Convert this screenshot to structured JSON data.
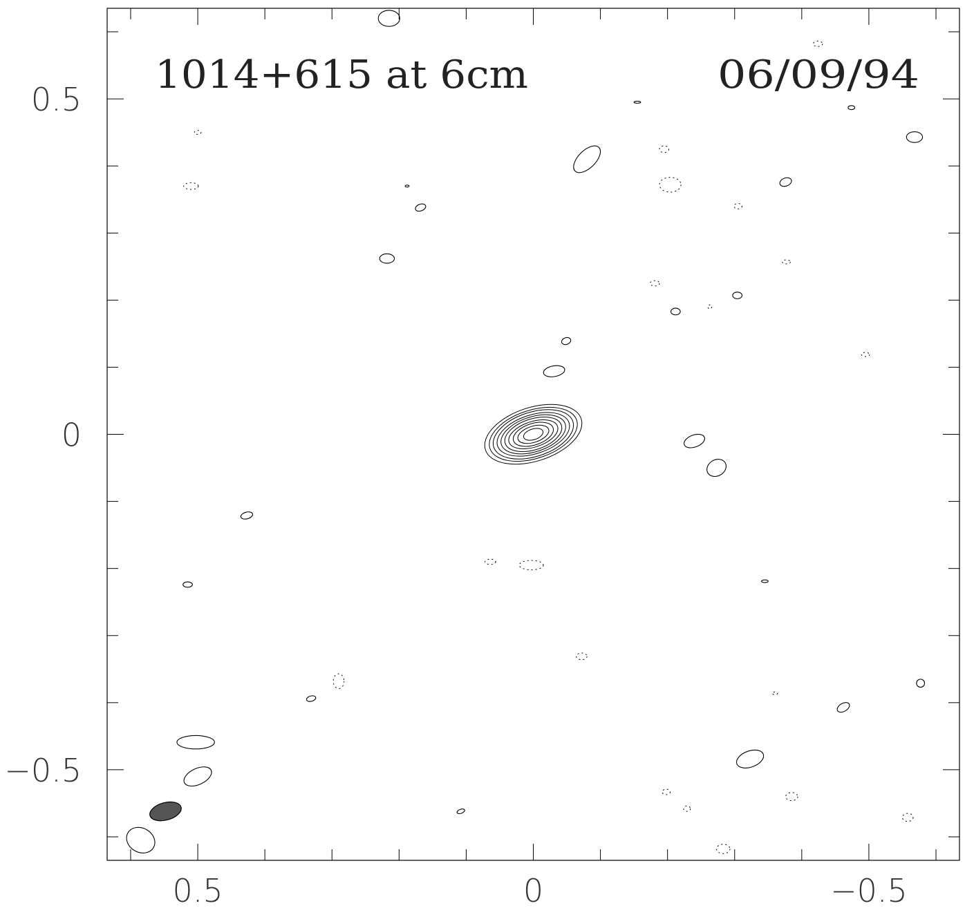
{
  "chart_data": {
    "type": "contour",
    "title_left": "1014+615 at 6cm",
    "title_right": "06/09/94",
    "xlabel": "",
    "ylabel": "",
    "xlim": [
      0.635,
      -0.635
    ],
    "ylim": [
      -0.635,
      0.635
    ],
    "x_ticks_major": [
      0.5,
      0,
      -0.5
    ],
    "x_tick_labels": [
      "0.5",
      "0",
      "−0.5"
    ],
    "y_ticks_major": [
      0.5,
      0,
      -0.5
    ],
    "y_tick_labels": [
      "0.5",
      "0",
      "−0.5"
    ],
    "minor_tick_step": 0.1,
    "grid": false,
    "beam": {
      "x": 0.548,
      "y": -0.562,
      "a": 0.024,
      "b": 0.013,
      "angle_deg": -15,
      "fill": "#555555"
    },
    "core": {
      "x": 0.0,
      "y": 0.0,
      "angle_deg": -18,
      "levels": [
        {
          "a": 0.075,
          "b": 0.04
        },
        {
          "a": 0.068,
          "b": 0.036
        },
        {
          "a": 0.062,
          "b": 0.033
        },
        {
          "a": 0.056,
          "b": 0.029
        },
        {
          "a": 0.05,
          "b": 0.026
        },
        {
          "a": 0.044,
          "b": 0.023
        },
        {
          "a": 0.038,
          "b": 0.019
        },
        {
          "a": 0.031,
          "b": 0.016
        },
        {
          "a": 0.024,
          "b": 0.012
        },
        {
          "a": 0.015,
          "b": 0.008
        }
      ]
    },
    "positive_contours": [
      {
        "x": 0.215,
        "y": 0.62,
        "a": 0.016,
        "b": 0.012,
        "angle_deg": 0
      },
      {
        "x": -0.08,
        "y": 0.41,
        "a": 0.025,
        "b": 0.013,
        "angle_deg": -45
      },
      {
        "x": 0.168,
        "y": 0.338,
        "a": 0.008,
        "b": 0.005,
        "angle_deg": -20
      },
      {
        "x": 0.218,
        "y": 0.262,
        "a": 0.011,
        "b": 0.007,
        "angle_deg": 0
      },
      {
        "x": -0.568,
        "y": 0.443,
        "a": 0.012,
        "b": 0.008,
        "angle_deg": 0
      },
      {
        "x": -0.376,
        "y": 0.376,
        "a": 0.009,
        "b": 0.006,
        "angle_deg": -20
      },
      {
        "x": -0.474,
        "y": 0.487,
        "a": 0.005,
        "b": 0.003,
        "angle_deg": 0
      },
      {
        "x": -0.304,
        "y": 0.207,
        "a": 0.007,
        "b": 0.005,
        "angle_deg": 0
      },
      {
        "x": -0.212,
        "y": 0.183,
        "a": 0.007,
        "b": 0.005,
        "angle_deg": 0
      },
      {
        "x": -0.049,
        "y": 0.139,
        "a": 0.007,
        "b": 0.005,
        "angle_deg": -20
      },
      {
        "x": -0.031,
        "y": 0.094,
        "a": 0.016,
        "b": 0.008,
        "angle_deg": -10
      },
      {
        "x": -0.24,
        "y": -0.01,
        "a": 0.016,
        "b": 0.009,
        "angle_deg": -20
      },
      {
        "x": -0.273,
        "y": -0.05,
        "a": 0.015,
        "b": 0.012,
        "angle_deg": -30
      },
      {
        "x": 0.427,
        "y": -0.121,
        "a": 0.009,
        "b": 0.005,
        "angle_deg": -15
      },
      {
        "x": 0.515,
        "y": -0.224,
        "a": 0.007,
        "b": 0.004,
        "angle_deg": 0
      },
      {
        "x": -0.345,
        "y": -0.219,
        "a": 0.005,
        "b": 0.002,
        "angle_deg": 0
      },
      {
        "x": 0.331,
        "y": -0.394,
        "a": 0.007,
        "b": 0.004,
        "angle_deg": -15
      },
      {
        "x": -0.577,
        "y": -0.371,
        "a": 0.006,
        "b": 0.006,
        "angle_deg": 0
      },
      {
        "x": -0.462,
        "y": -0.407,
        "a": 0.01,
        "b": 0.006,
        "angle_deg": -30
      },
      {
        "x": 0.503,
        "y": -0.459,
        "a": 0.028,
        "b": 0.01,
        "angle_deg": 0
      },
      {
        "x": 0.5,
        "y": -0.51,
        "a": 0.022,
        "b": 0.012,
        "angle_deg": -25
      },
      {
        "x": -0.323,
        "y": -0.484,
        "a": 0.021,
        "b": 0.012,
        "angle_deg": -20
      },
      {
        "x": 0.585,
        "y": -0.605,
        "a": 0.022,
        "b": 0.018,
        "angle_deg": 30
      },
      {
        "x": 0.108,
        "y": -0.562,
        "a": 0.006,
        "b": 0.003,
        "angle_deg": -20
      },
      {
        "x": -0.155,
        "y": 0.495,
        "a": 0.005,
        "b": 0.0015,
        "angle_deg": 0
      },
      {
        "x": 0.188,
        "y": 0.37,
        "a": 0.003,
        "b": 0.0015,
        "angle_deg": 0
      }
    ],
    "negative_contours": [
      {
        "x": 0.5,
        "y": 0.45,
        "a": 0.005,
        "b": 0.003
      },
      {
        "x": 0.51,
        "y": 0.37,
        "a": 0.011,
        "b": 0.005
      },
      {
        "x": -0.195,
        "y": 0.425,
        "a": 0.007,
        "b": 0.005
      },
      {
        "x": -0.204,
        "y": 0.372,
        "a": 0.016,
        "b": 0.011
      },
      {
        "x": -0.305,
        "y": 0.34,
        "a": 0.006,
        "b": 0.004
      },
      {
        "x": -0.424,
        "y": 0.582,
        "a": 0.007,
        "b": 0.004
      },
      {
        "x": -0.377,
        "y": 0.257,
        "a": 0.006,
        "b": 0.003
      },
      {
        "x": -0.181,
        "y": 0.225,
        "a": 0.007,
        "b": 0.004
      },
      {
        "x": -0.263,
        "y": 0.19,
        "a": 0.003,
        "b": 0.003
      },
      {
        "x": -0.495,
        "y": 0.119,
        "a": 0.006,
        "b": 0.003
      },
      {
        "x": 0.064,
        "y": -0.19,
        "a": 0.008,
        "b": 0.004
      },
      {
        "x": 0.003,
        "y": -0.195,
        "a": 0.018,
        "b": 0.007
      },
      {
        "x": -0.072,
        "y": -0.331,
        "a": 0.008,
        "b": 0.005
      },
      {
        "x": 0.29,
        "y": -0.368,
        "a": 0.008,
        "b": 0.011
      },
      {
        "x": -0.36,
        "y": -0.386,
        "a": 0.004,
        "b": 0.002
      },
      {
        "x": -0.198,
        "y": -0.533,
        "a": 0.006,
        "b": 0.004
      },
      {
        "x": -0.229,
        "y": -0.558,
        "a": 0.005,
        "b": 0.004
      },
      {
        "x": -0.385,
        "y": -0.54,
        "a": 0.009,
        "b": 0.006
      },
      {
        "x": -0.558,
        "y": -0.571,
        "a": 0.008,
        "b": 0.006
      },
      {
        "x": -0.283,
        "y": -0.618,
        "a": 0.01,
        "b": 0.007
      }
    ]
  }
}
